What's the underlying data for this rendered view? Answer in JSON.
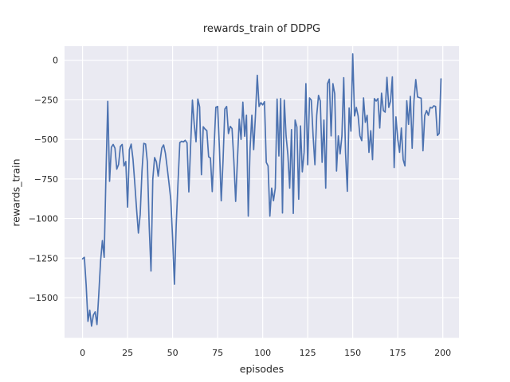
{
  "chart_data": {
    "type": "line",
    "title": "rewards_train of DDPG",
    "xlabel": "episodes",
    "ylabel": "rewards_train",
    "x_ticks": [
      0,
      25,
      50,
      75,
      100,
      125,
      150,
      175,
      200
    ],
    "x_tick_labels": [
      "0",
      "25",
      "50",
      "75",
      "100",
      "125",
      "150",
      "175",
      "200"
    ],
    "y_ticks": [
      0,
      -250,
      -500,
      -750,
      -1000,
      -1250,
      -1500
    ],
    "y_tick_labels": [
      "0",
      "−250",
      "−500",
      "−750",
      "−1000",
      "−1250",
      "−1500"
    ],
    "xlim": [
      -10,
      209
    ],
    "ylim": [
      -1754,
      89
    ],
    "grid": true,
    "legend": null,
    "colors": {
      "figure_background": "#ffffff",
      "axes_background": "#eaeaf2",
      "grid": "#ffffff",
      "line": "#4c72b0",
      "text": "#262626"
    },
    "series": [
      {
        "name": "rewards_train",
        "color": "#4c72b0",
        "x": "episode index 0-199",
        "values": [
          -1255,
          -1245,
          -1420,
          -1650,
          -1580,
          -1680,
          -1610,
          -1590,
          -1670,
          -1480,
          -1270,
          -1140,
          -1245,
          -720,
          -260,
          -765,
          -550,
          -532,
          -556,
          -688,
          -658,
          -545,
          -532,
          -668,
          -640,
          -928,
          -565,
          -530,
          -625,
          -778,
          -942,
          -1092,
          -975,
          -700,
          -525,
          -530,
          -645,
          -1050,
          -1332,
          -752,
          -615,
          -642,
          -732,
          -638,
          -555,
          -535,
          -588,
          -680,
          -778,
          -882,
          -1125,
          -1415,
          -1040,
          -772,
          -520,
          -512,
          -516,
          -506,
          -522,
          -832,
          -540,
          -252,
          -405,
          -515,
          -245,
          -295,
          -723,
          -420,
          -435,
          -445,
          -610,
          -618,
          -830,
          -555,
          -297,
          -292,
          -558,
          -888,
          -635,
          -308,
          -292,
          -463,
          -418,
          -432,
          -637,
          -892,
          -628,
          -372,
          -500,
          -265,
          -480,
          -347,
          -985,
          -560,
          -347,
          -565,
          -344,
          -95,
          -292,
          -268,
          -282,
          -262,
          -645,
          -668,
          -985,
          -808,
          -888,
          -808,
          -245,
          -605,
          -242,
          -965,
          -252,
          -478,
          -598,
          -808,
          -438,
          -968,
          -378,
          -422,
          -878,
          -415,
          -705,
          -582,
          -148,
          -660,
          -238,
          -252,
          -478,
          -660,
          -348,
          -222,
          -258,
          -645,
          -378,
          -808,
          -148,
          -120,
          -478,
          -148,
          -212,
          -700,
          -478,
          -592,
          -478,
          -110,
          -582,
          -828,
          -302,
          -448,
          40,
          -352,
          -298,
          -352,
          -478,
          -508,
          -238,
          -392,
          -348,
          -582,
          -445,
          -628,
          -242,
          -258,
          -242,
          -428,
          -208,
          -318,
          -328,
          -108,
          -298,
          -258,
          -105,
          -678,
          -358,
          -498,
          -582,
          -428,
          -628,
          -668,
          -256,
          -405,
          -228,
          -556,
          -256,
          -122,
          -232,
          -236,
          -240,
          -572,
          -348,
          -318,
          -348,
          -298,
          -302,
          -288,
          -292,
          -475,
          -462,
          -118
        ]
      }
    ]
  }
}
